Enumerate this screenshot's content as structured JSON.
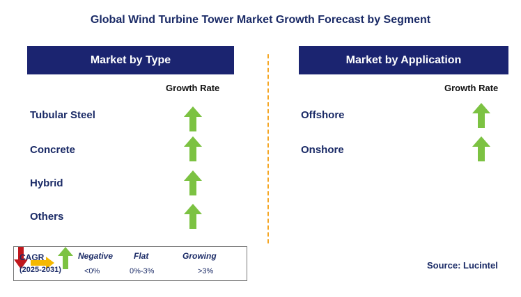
{
  "title": "Global Wind Turbine Tower Market Growth Forecast by Segment",
  "colors": {
    "header_bg": "#1b2470",
    "header_text": "#ffffff",
    "label_text": "#1a2a66",
    "growing_arrow": "#7cc242",
    "negative_arrow": "#c0171c",
    "flat_arrow": "#f5b800",
    "divider": "#f5a623"
  },
  "left_panel": {
    "header": "Market by Type",
    "column_header": "Growth Rate",
    "rows": [
      {
        "label": "Tubular Steel",
        "trend": "growing",
        "icon": "up-arrow-icon"
      },
      {
        "label": "Concrete",
        "trend": "growing",
        "icon": "up-arrow-icon"
      },
      {
        "label": "Hybrid",
        "trend": "growing",
        "icon": "up-arrow-icon"
      },
      {
        "label": "Others",
        "trend": "growing",
        "icon": "up-arrow-icon"
      }
    ]
  },
  "right_panel": {
    "header": "Market by Application",
    "column_header": "Growth Rate",
    "rows": [
      {
        "label": "Offshore",
        "trend": "growing",
        "icon": "up-arrow-icon"
      },
      {
        "label": "Onshore",
        "trend": "growing",
        "icon": "up-arrow-icon"
      }
    ]
  },
  "legend": {
    "cagr_label": "CAGR",
    "period": "(2025-2031)",
    "items": [
      {
        "name": "Negative",
        "range": "<0%",
        "icon": "down-arrow-icon"
      },
      {
        "name": "Flat",
        "range": "0%-3%",
        "icon": "right-arrow-icon"
      },
      {
        "name": "Growing",
        "range": ">3%",
        "icon": "up-arrow-icon"
      }
    ]
  },
  "source": "Source: Lucintel"
}
